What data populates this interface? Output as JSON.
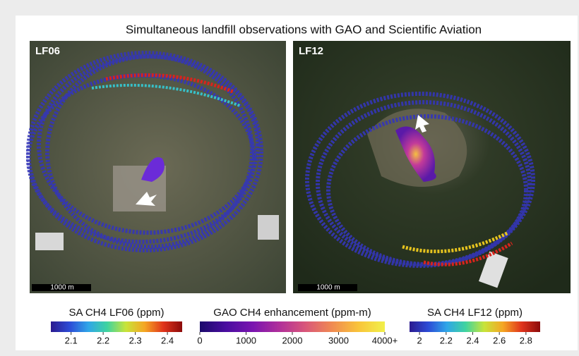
{
  "title": "Simultaneous landfill observations with GAO and Scientific Aviation",
  "panels": [
    {
      "label": "LF06",
      "scale_bar": "1000 m"
    },
    {
      "label": "LF12",
      "scale_bar": "1000 m"
    }
  ],
  "colorbars": [
    {
      "title": "SA CH4 LF06 (ppm)",
      "range": [
        2.037,
        2.446
      ],
      "ticks": [
        2.1,
        2.2,
        2.3,
        2.4
      ],
      "colormap": [
        "#2b1a8f",
        "#2c4bd6",
        "#2fa6e8",
        "#3fd3a0",
        "#c8e43a",
        "#f5a623",
        "#e0341c",
        "#8b0a0a"
      ]
    },
    {
      "title": "GAO CH4 enhancement (ppm-m)",
      "range": [
        0,
        4000
      ],
      "ticks": [
        0,
        1000,
        2000,
        3000,
        {
          "value": 4000,
          "label": "4000+"
        }
      ],
      "colormap": [
        "#1a0a6b",
        "#4a0da0",
        "#7a14b0",
        "#b02f9a",
        "#d9577a",
        "#f08a52",
        "#f9c43a",
        "#f1f04a"
      ]
    },
    {
      "title": "SA CH4 LF12 (ppm)",
      "range": [
        1.925,
        2.907
      ],
      "ticks": [
        2.0,
        2.2,
        2.4,
        2.6,
        2.8
      ],
      "colormap": [
        "#2b1a8f",
        "#2c4bd6",
        "#2fa6e8",
        "#3fd3a0",
        "#c8e43a",
        "#f5a623",
        "#e0341c",
        "#8b0a0a"
      ]
    }
  ]
}
